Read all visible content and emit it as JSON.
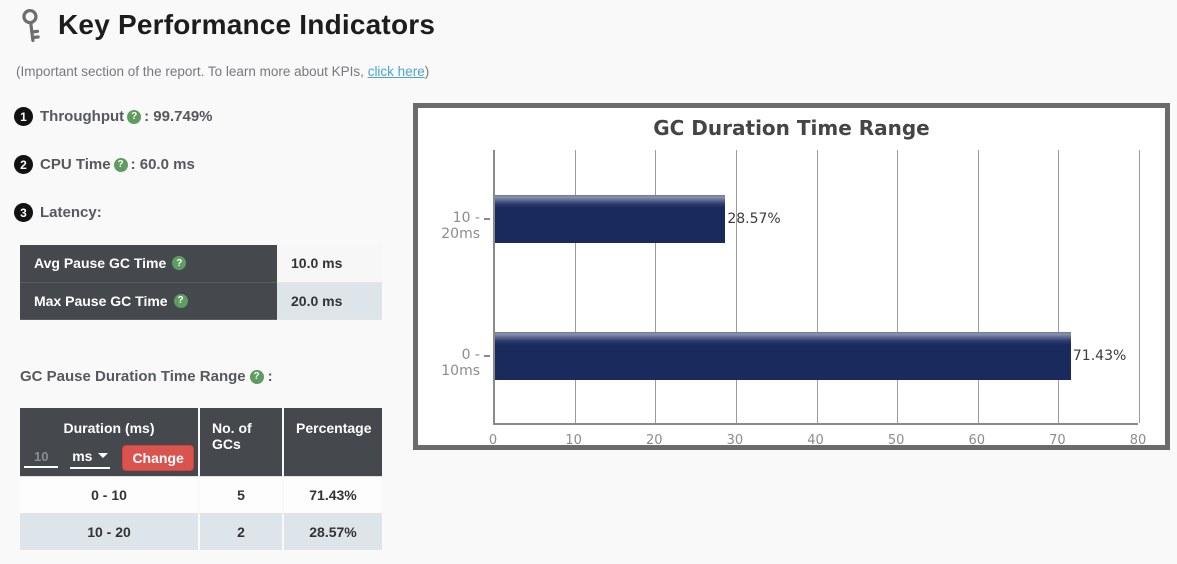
{
  "header": {
    "title": "Key Performance Indicators",
    "subtitle_prefix": "(Important section of the report. To learn more about KPIs, ",
    "subtitle_link": "click here",
    "subtitle_suffix": ")"
  },
  "kpis": [
    {
      "num": "1",
      "label": "Throughput",
      "value": ": 99.749%"
    },
    {
      "num": "2",
      "label": "CPU Time",
      "value": ": 60.0 ms"
    },
    {
      "num": "3",
      "label": "Latency:",
      "value": ""
    }
  ],
  "latency_table": {
    "rows": [
      {
        "label": "Avg Pause GC Time",
        "value": "10.0 ms"
      },
      {
        "label": "Max Pause GC Time",
        "value": "20.0 ms"
      }
    ]
  },
  "duration_section": {
    "label": "GC Pause Duration Time Range",
    "colon": ":"
  },
  "duration_table": {
    "headers": [
      "Duration (ms)",
      "No. of GCs",
      "Percentage"
    ],
    "input_value": "10",
    "unit_selected": "ms",
    "change_label": "Change",
    "rows": [
      [
        "0 - 10",
        "5",
        "71.43%"
      ],
      [
        "10 - 20",
        "2",
        "28.57%"
      ]
    ]
  },
  "chart_data": {
    "type": "bar",
    "orientation": "horizontal",
    "title": "GC Duration Time Range",
    "categories": [
      "10 - 20ms",
      "0 - 10ms"
    ],
    "values": [
      28.57,
      71.43
    ],
    "value_labels": [
      "28.57%",
      "71.43%"
    ],
    "xlim": [
      0,
      80
    ],
    "xticks": [
      0,
      10,
      20,
      30,
      40,
      50,
      60,
      70,
      80
    ],
    "grid": true,
    "legend": false,
    "bar_color": "#1b2a5c",
    "bar_bevel_color": "#6b779a"
  },
  "colors": {
    "accent_red": "#d9534f",
    "help_green": "#5e9c60",
    "table_header_dark": "#45494e",
    "row_alt_blue": "#dde4ea",
    "link_blue": "#4aa5cf",
    "chart_border_gray": "#6b6b6b"
  }
}
